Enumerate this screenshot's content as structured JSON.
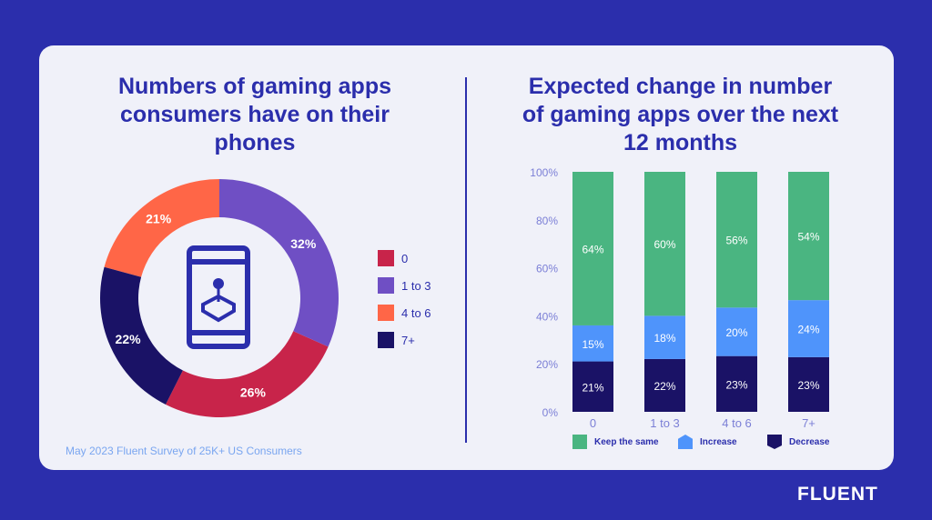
{
  "left_title": "Numbers of gaming apps consumers have on their phones",
  "right_title": "Expected change in number of gaming apps over the next 12 months",
  "source": "May 2023 Fluent Survey of 25K+ US Consumers",
  "logo": "FLUENT",
  "center_icon": "phone-joystick-icon",
  "chart_data": [
    {
      "type": "pie",
      "subtype": "donut",
      "title": "Numbers of gaming apps consumers have on their phones",
      "legend_position": "right",
      "slices": [
        {
          "name": "1 to 3",
          "value": 32,
          "label": "32%",
          "color": "#6f4fc4"
        },
        {
          "name": "0",
          "value": 26,
          "label": "26%",
          "color": "#c8244a"
        },
        {
          "name": "7+",
          "value": 22,
          "label": "22%",
          "color": "#1a1266"
        },
        {
          "name": "4 to 6",
          "value": 21,
          "label": "21%",
          "color": "#ff6647"
        }
      ],
      "legend": [
        {
          "name": "0",
          "color": "#c8244a"
        },
        {
          "name": "1 to 3",
          "color": "#6f4fc4"
        },
        {
          "name": "4 to 6",
          "color": "#ff6647"
        },
        {
          "name": "7+",
          "color": "#1a1266"
        }
      ]
    },
    {
      "type": "bar",
      "stacked": true,
      "title": "Expected change in number of gaming apps over the next 12 months",
      "categories": [
        "0",
        "1 to 3",
        "4 to 6",
        "7+"
      ],
      "ylim": [
        0,
        100
      ],
      "yticks": [
        "0%",
        "20%",
        "40%",
        "60%",
        "80%",
        "100%"
      ],
      "grid": false,
      "legend_position": "bottom",
      "series": [
        {
          "name": "Decrease",
          "values": [
            21,
            22,
            23,
            23
          ],
          "color": "#1a1266"
        },
        {
          "name": "Increase",
          "values": [
            15,
            18,
            20,
            24
          ],
          "color": "#4f94fb"
        },
        {
          "name": "Keep the same",
          "values": [
            64,
            60,
            56,
            54
          ],
          "color": "#4ab581"
        }
      ],
      "legend_order": [
        "Keep the same",
        "Increase",
        "Decrease"
      ]
    }
  ]
}
